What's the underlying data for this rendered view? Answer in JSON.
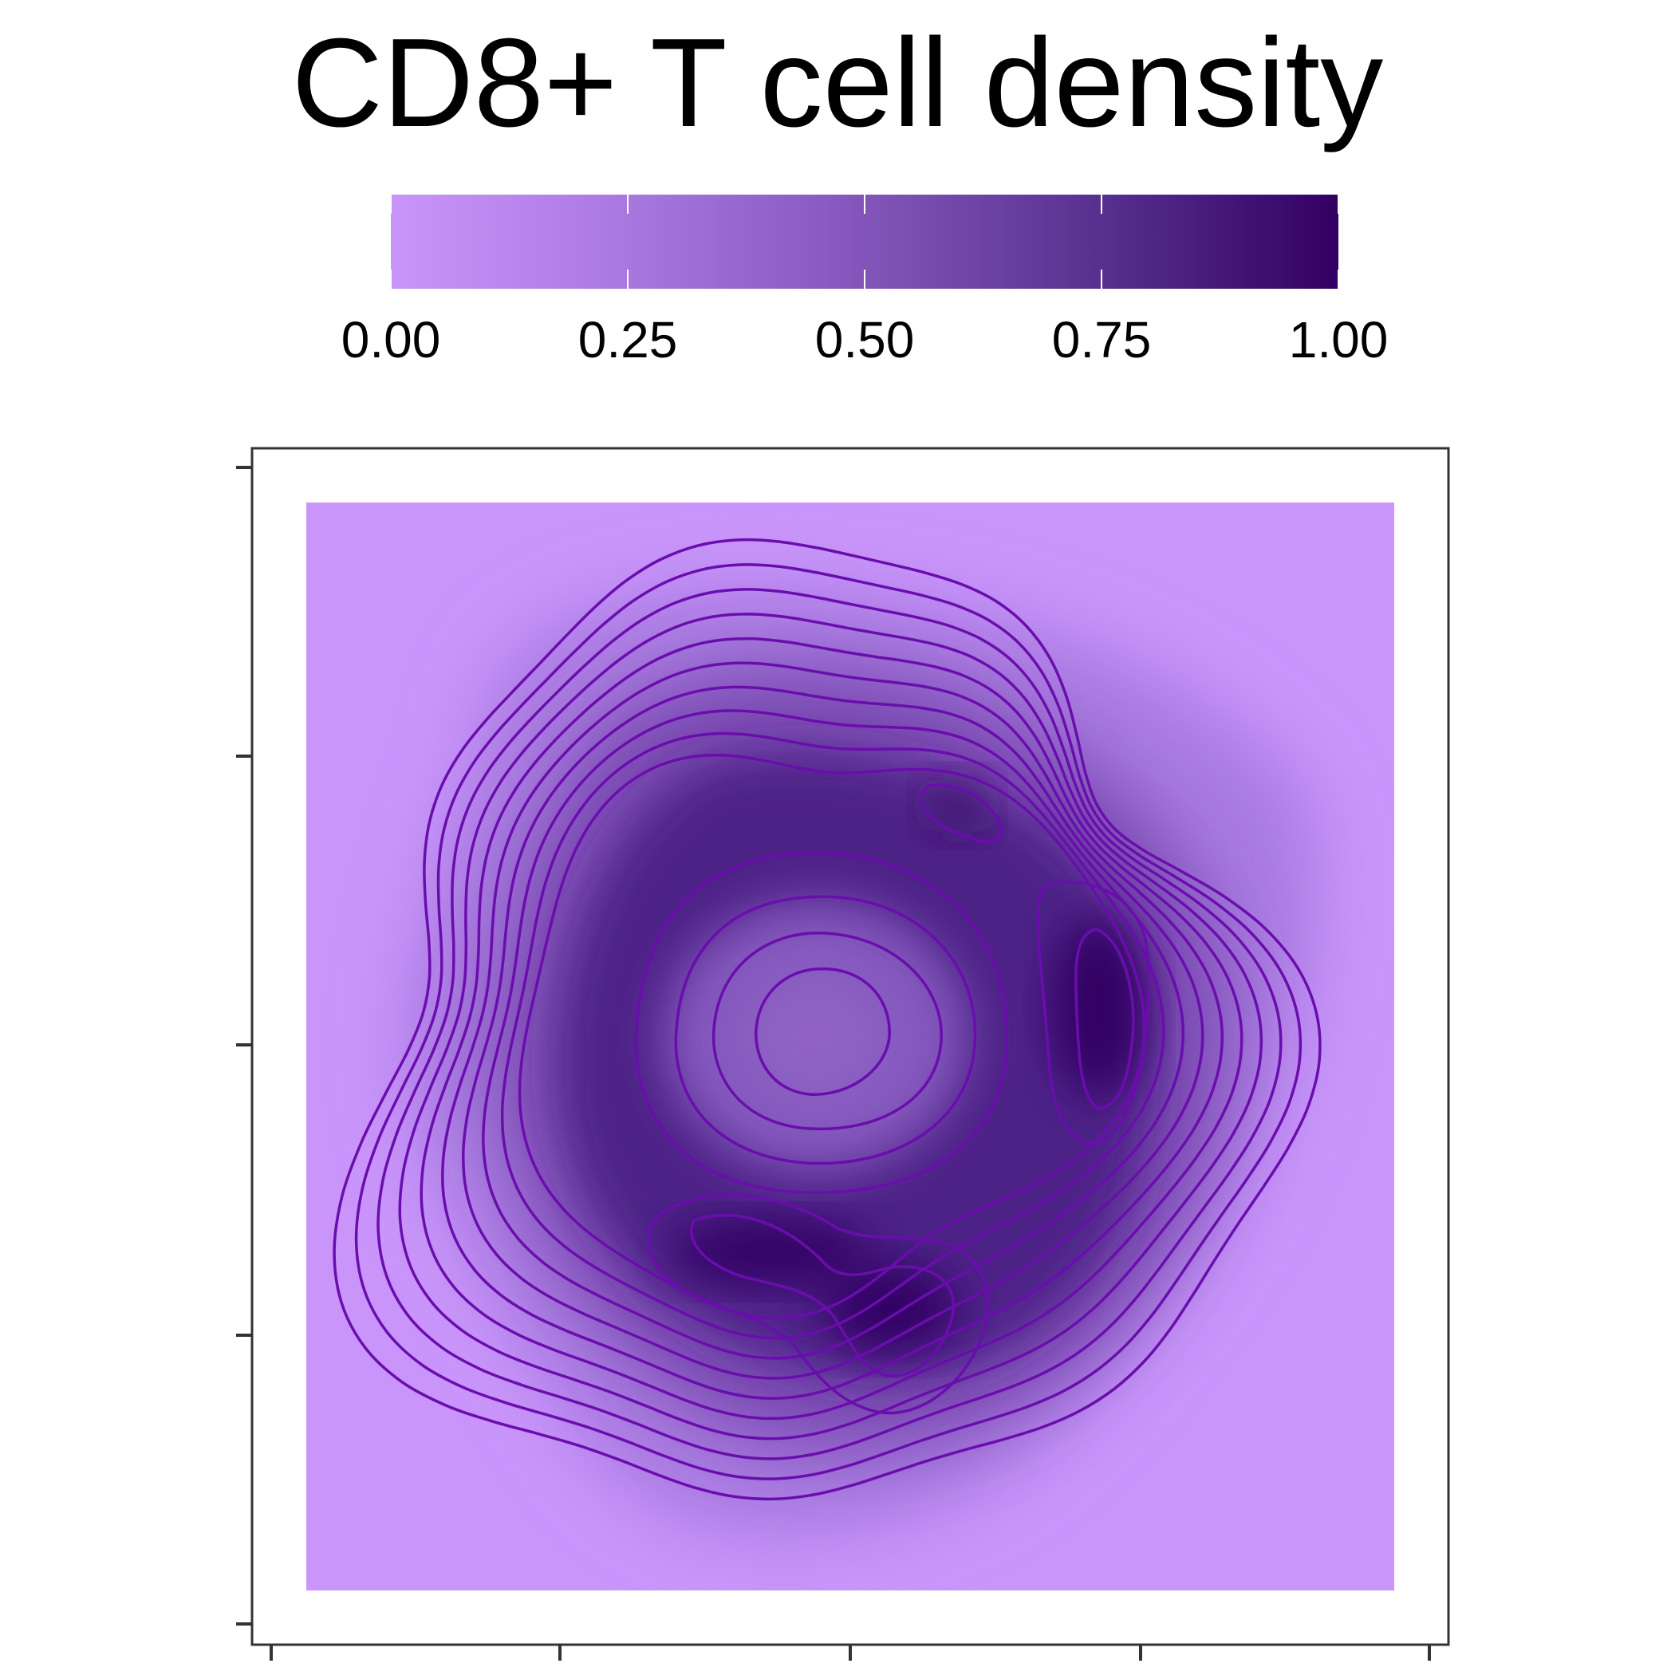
{
  "chart_data": {
    "type": "heatmap",
    "subtype": "2d-density-with-contours",
    "title": "CD8+ T cell density",
    "xlabel": "",
    "ylabel": "",
    "x_ticks": [
      "",
      "",
      "",
      "",
      ""
    ],
    "y_ticks": [
      "",
      "",
      "",
      "",
      ""
    ],
    "grid": false,
    "legend": {
      "position": "top",
      "type": "colorbar",
      "range": [
        0,
        1
      ],
      "ticks": [
        "0.00",
        "0.25",
        "0.50",
        "0.75",
        "1.00"
      ],
      "colors": [
        "#c995fb",
        "#330063"
      ]
    },
    "contour_color": "#6a0dad",
    "contour_levels": 12,
    "panel_background": "#c995fb",
    "density_peaks": [
      {
        "name": "central ring",
        "level": 0.55
      },
      {
        "name": "right lobe",
        "level": 1.0
      },
      {
        "name": "lower lobe",
        "level": 1.0
      },
      {
        "name": "upper small lobe",
        "level": 0.9
      }
    ]
  }
}
